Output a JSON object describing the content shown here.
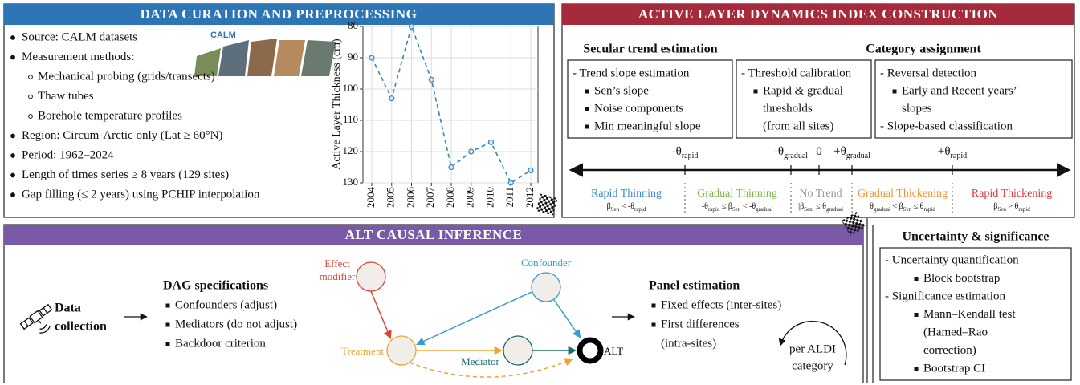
{
  "data_curation": {
    "title": "DATA CURATION AND PREPROCESSING",
    "logo_text": "CALM",
    "items": [
      {
        "text": "Source: CALM datasets"
      },
      {
        "text": "Measurement methods:",
        "subitems": [
          "Mechanical probing (grids/transects)",
          "Thaw tubes",
          "Borehole temperature profiles"
        ]
      },
      {
        "text": "Region: Circum-Arctic only (Lat ≥ 60°N)"
      },
      {
        "text": "Period: 1962–2024"
      },
      {
        "text": "Length of times series ≥ 8 years (129 sites)"
      },
      {
        "text": "Gap filling (≤ 2 years) using PCHIP interpolation"
      }
    ]
  },
  "chart_data": {
    "type": "line",
    "y_label": "Active Layer Thickness (cm)",
    "x": [
      2004,
      2005,
      2006,
      2007,
      2008,
      2009,
      2010,
      2011,
      2012
    ],
    "values": [
      90,
      103,
      80,
      97,
      125,
      120,
      117,
      130,
      126
    ],
    "color": "#2e86c1",
    "line_style": "dashed",
    "ylim": [
      80,
      130
    ],
    "yticks": [
      80,
      90,
      100,
      110,
      120,
      130
    ],
    "y_inverted": true,
    "grid": true
  },
  "aldi": {
    "title": "ACTIVE LAYER DYNAMICS INDEX CONSTRUCTION",
    "sections": [
      "Secular trend estimation",
      "Category assignment"
    ],
    "boxes": [
      [
        {
          "heading": "- Trend slope estimation",
          "bullets": [
            [
              "Sen’s slope"
            ],
            [
              "Noise components"
            ],
            [
              "Min meaningful slope"
            ]
          ]
        }
      ],
      [
        {
          "heading": "- Threshold calibration",
          "bullets": [
            [
              "Rapid & gradual",
              "thresholds",
              "(from all sites)"
            ]
          ]
        }
      ],
      [
        {
          "heading": "- Reversal detection",
          "bullets": [
            [
              "Early and Recent years’",
              "slopes"
            ]
          ]
        },
        {
          "heading": "- Slope-based classification"
        }
      ]
    ],
    "thresholds": [
      {
        "sign": "-θ",
        "sub": "rapid"
      },
      {
        "sign": "-θ",
        "sub": "gradual"
      },
      {
        "sign": "0"
      },
      {
        "sign": "+θ",
        "sub": "gradual"
      },
      {
        "sign": "+θ",
        "sub": "rapid"
      }
    ],
    "categories": [
      {
        "name": "Rapid Thinning",
        "color": "#3a8fc9",
        "condition": [
          "β",
          "Sen",
          " < -θ",
          "rapid"
        ]
      },
      {
        "name": "Gradual Thinning",
        "color": "#7cb94a",
        "condition": [
          "-θ",
          "rapid",
          " ≤ β",
          "Sen",
          " < -θ",
          "gradual"
        ]
      },
      {
        "name": "No Trend",
        "color": "#9a9a9a",
        "condition": [
          "|β",
          "Sen",
          "| ≤ θ",
          "gradual"
        ]
      },
      {
        "name": "Gradual Thickening",
        "color": "#f0962e",
        "condition": [
          "θ",
          "gradual",
          " < β",
          "Sen",
          " ≤ θ",
          "rapid"
        ]
      },
      {
        "name": "Rapid Thickening",
        "color": "#d93a3a",
        "condition": [
          "β",
          "Sen",
          " > θ",
          "rapid"
        ]
      }
    ]
  },
  "causal": {
    "title": "ALT CAUSAL INFERENCE",
    "data_collection": [
      "Data",
      "collection"
    ],
    "dag_specs": {
      "title": "DAG specifications",
      "items": [
        "Confounders (adjust)",
        "Mediators (do not adjust)",
        "Backdoor criterion"
      ]
    },
    "nodes": [
      {
        "label": [
          "Effect",
          "modifier"
        ],
        "color": "#d9443c"
      },
      {
        "label": [
          "Confounder"
        ],
        "color": "#3a9ad0"
      },
      {
        "label": [
          "Treatment"
        ],
        "color": "#f0a332"
      },
      {
        "label": [
          "Mediator"
        ],
        "color": "#1d6b6b"
      },
      {
        "label": [
          "ALT"
        ],
        "color": "#000000"
      }
    ],
    "panel": {
      "title": "Panel estimation",
      "items": [
        [
          "Fixed effects (inter-sites)"
        ],
        [
          "First differences",
          "(intra-sites)"
        ]
      ]
    },
    "loop_label": [
      "per ALDI",
      "category"
    ]
  },
  "uncertainty": {
    "title": "Uncertainty & significance",
    "groups": [
      {
        "heading": "- Uncertainty quantification",
        "bullets": [
          [
            "Block bootstrap"
          ]
        ]
      },
      {
        "heading": "- Significance estimation",
        "bullets": [
          [
            "Mann–Kendall test",
            "(Hamed–Rao",
            "correction)"
          ],
          [
            "Bootstrap CI"
          ]
        ]
      }
    ]
  }
}
